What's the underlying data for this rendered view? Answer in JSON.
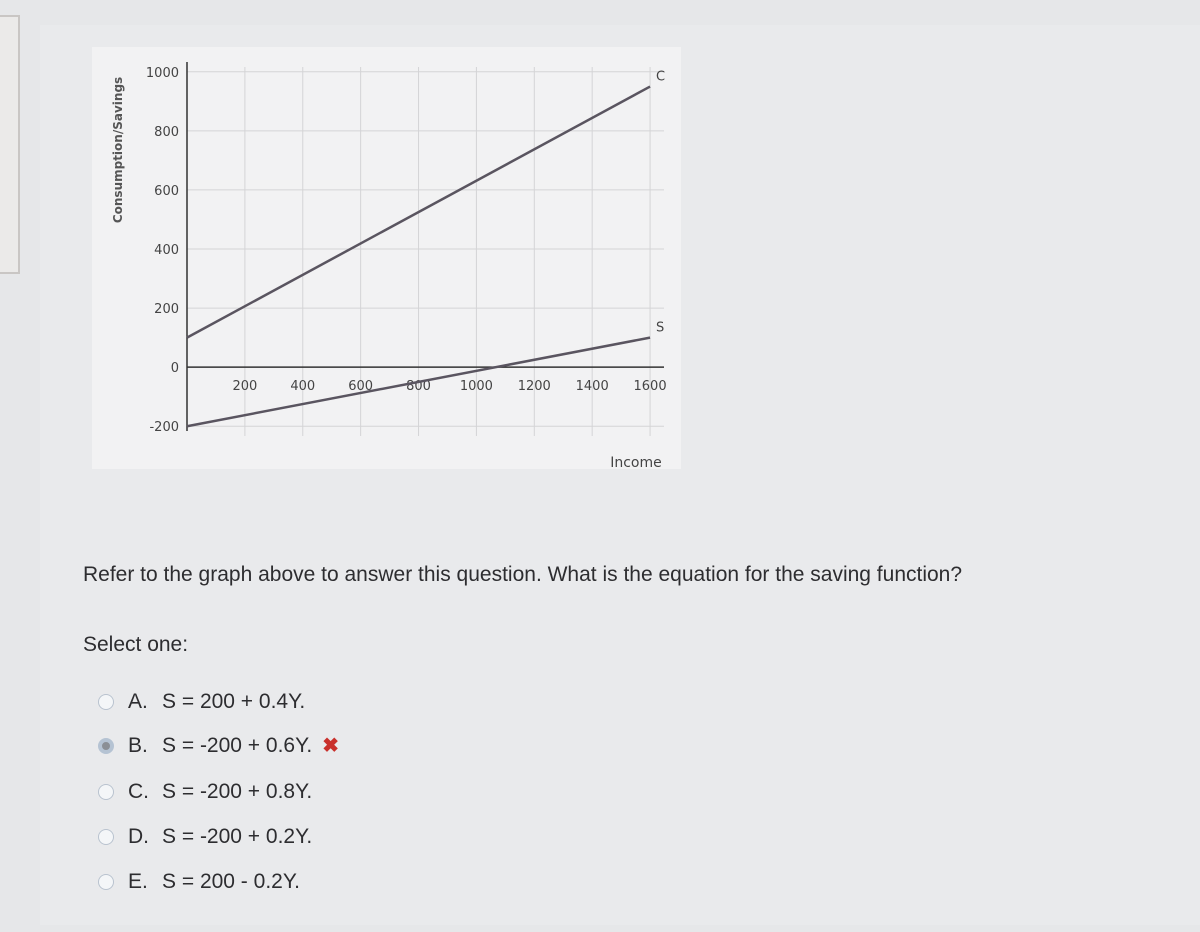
{
  "chart_data": {
    "type": "line",
    "x_label": "Income",
    "y_label": "Consumption/Savings",
    "xlim": [
      0,
      1700
    ],
    "ylim": [
      -250,
      1050
    ],
    "xticks": [
      200,
      400,
      600,
      800,
      1000,
      1200,
      1400,
      1600
    ],
    "yticks": [
      1000,
      800,
      600,
      400,
      200,
      0,
      -200
    ],
    "grid": true,
    "x": [
      0,
      1600
    ],
    "series": [
      {
        "name": "C",
        "color": "#5a5560",
        "values": [
          100,
          950
        ]
      },
      {
        "name": "S",
        "color": "#5a5560",
        "values": [
          -200,
          100
        ]
      }
    ]
  },
  "question": "Refer to the graph above to answer this question. What is the equation for the saving function?",
  "prompt": "Select one:",
  "options": [
    {
      "letter": "A.",
      "text": "S = 200 + 0.4Y."
    },
    {
      "letter": "B.",
      "text": "S = -200 + 0.6Y."
    },
    {
      "letter": "C.",
      "text": "S = -200 + 0.8Y."
    },
    {
      "letter": "D.",
      "text": "S = -200 + 0.2Y."
    },
    {
      "letter": "E.",
      "text": "S = 200 - 0.2Y."
    }
  ],
  "selected": 1
}
